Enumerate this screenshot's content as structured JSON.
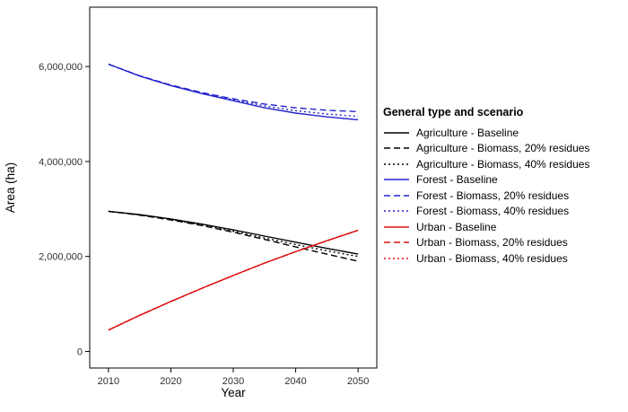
{
  "chart_data": {
    "type": "line",
    "title": "",
    "xlabel": "Year",
    "ylabel": "Area (ha)",
    "legend_title": "General type and scenario",
    "legend_position": "right",
    "grid": false,
    "x": [
      2010,
      2015,
      2020,
      2025,
      2030,
      2035,
      2040,
      2045,
      2050
    ],
    "xlim": [
      2007,
      2053
    ],
    "ylim": [
      -350000,
      7250000
    ],
    "xticks": [
      2010,
      2020,
      2030,
      2040,
      2050
    ],
    "xtick_labels": [
      "2010",
      "2020",
      "2030",
      "2040",
      "2050"
    ],
    "yticks": [
      0,
      2000000,
      4000000,
      6000000
    ],
    "ytick_labels": [
      "0",
      "2,000,000",
      "4,000,000",
      "6,000,000"
    ],
    "colors": {
      "agriculture": "#000000",
      "forest": "#2222cc",
      "urban": "#dd1111"
    },
    "dash_styles": {
      "baseline": "solid",
      "biomass_20": "dashed",
      "biomass_40": "dotted"
    },
    "series": [
      {
        "name": "Agriculture - Baseline",
        "color": "#000000",
        "dash": "solid",
        "values": [
          2950000,
          2880000,
          2790000,
          2680000,
          2560000,
          2430000,
          2300000,
          2170000,
          2050000
        ]
      },
      {
        "name": "Agriculture - Biomass, 20% residues",
        "color": "#000000",
        "dash": "dashed",
        "values": [
          2950000,
          2870000,
          2770000,
          2650000,
          2510000,
          2360000,
          2200000,
          2050000,
          1900000
        ]
      },
      {
        "name": "Agriculture - Biomass, 40% residues",
        "color": "#000000",
        "dash": "dotted",
        "values": [
          2950000,
          2875000,
          2780000,
          2660000,
          2530000,
          2390000,
          2250000,
          2120000,
          2000000
        ]
      },
      {
        "name": "Forest - Baseline",
        "color": "#2222cc",
        "dash": "solid",
        "values": [
          6050000,
          5800000,
          5600000,
          5430000,
          5280000,
          5130000,
          5020000,
          4940000,
          4880000
        ]
      },
      {
        "name": "Forest - Biomass, 20% residues",
        "color": "#2222cc",
        "dash": "dashed",
        "values": [
          6050000,
          5805000,
          5610000,
          5450000,
          5320000,
          5210000,
          5130000,
          5080000,
          5050000
        ]
      },
      {
        "name": "Forest - Biomass, 40% residues",
        "color": "#2222cc",
        "dash": "dotted",
        "values": [
          6050000,
          5800000,
          5600000,
          5440000,
          5300000,
          5170000,
          5070000,
          5000000,
          4950000
        ]
      },
      {
        "name": "Urban - Baseline",
        "color": "#dd1111",
        "dash": "solid",
        "values": [
          450000,
          760000,
          1050000,
          1330000,
          1600000,
          1860000,
          2100000,
          2330000,
          2550000
        ]
      },
      {
        "name": "Urban - Biomass, 20% residues",
        "color": "#dd1111",
        "dash": "dashed",
        "values": [
          450000,
          760000,
          1050000,
          1330000,
          1600000,
          1860000,
          2100000,
          2330000,
          2550000
        ]
      },
      {
        "name": "Urban - Biomass, 40% residues",
        "color": "#dd1111",
        "dash": "dotted",
        "values": [
          450000,
          760000,
          1050000,
          1330000,
          1600000,
          1860000,
          2100000,
          2330000,
          2550000
        ]
      }
    ]
  }
}
